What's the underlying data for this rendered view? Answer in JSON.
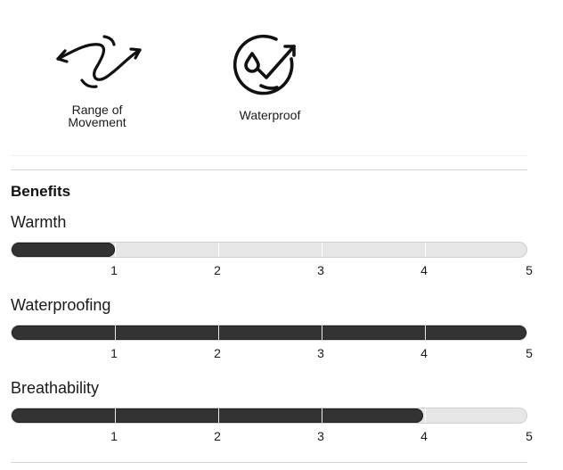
{
  "features": [
    {
      "icon": "range-of-movement-icon",
      "label": "Range of\nMovement"
    },
    {
      "icon": "waterproof-icon",
      "label": "Waterproof"
    }
  ],
  "benefits": {
    "title": "Benefits",
    "scale_max": 5,
    "tick_labels": [
      "1",
      "2",
      "3",
      "4",
      "5"
    ],
    "ratings": [
      {
        "name": "Warmth",
        "value": 1
      },
      {
        "name": "Waterproofing",
        "value": 5
      },
      {
        "name": "Breathability",
        "value": 4
      }
    ]
  },
  "colors": {
    "fill": "#333333",
    "track": "#e6e6e6",
    "text": "#111111"
  }
}
